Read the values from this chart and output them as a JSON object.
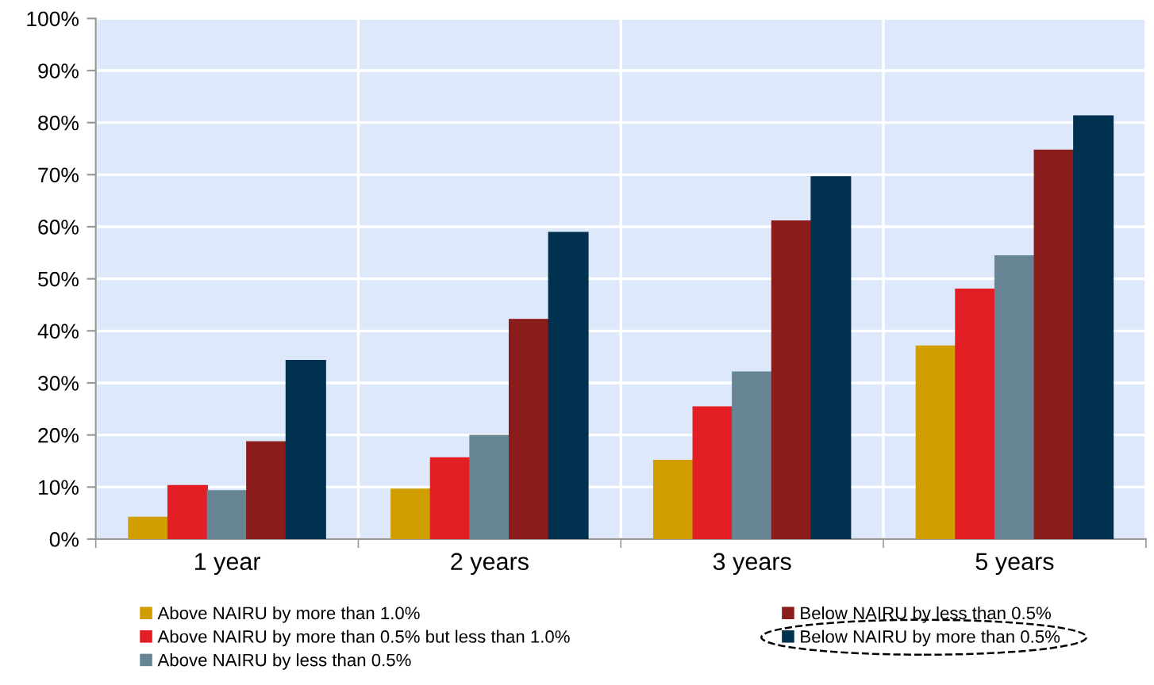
{
  "chart_data": {
    "type": "bar",
    "categories": [
      "1 year",
      "2 years",
      "3 years",
      "5 years"
    ],
    "series": [
      {
        "name": "Above NAIRU by more than 1.0%",
        "color": "#d09e00",
        "values": [
          4.2,
          9.6,
          15.1,
          37.1
        ]
      },
      {
        "name": "Above NAIRU by more than 0.5% but less than 1.0%",
        "color": "#e31e24",
        "values": [
          10.3,
          15.6,
          25.4,
          48.0
        ]
      },
      {
        "name": "Above NAIRU by less than 0.5%",
        "color": "#688596",
        "values": [
          9.3,
          19.9,
          32.1,
          54.4
        ]
      },
      {
        "name": "Below NAIRU by less than 0.5%",
        "color": "#8b1c1c",
        "values": [
          18.7,
          42.2,
          61.1,
          74.7
        ]
      },
      {
        "name": "Below NAIRU by more than 0.5%",
        "color": "#00314f",
        "values": [
          34.3,
          58.9,
          69.6,
          81.3
        ]
      }
    ],
    "ylim": [
      0,
      100
    ],
    "yticks": [
      {
        "value": 0,
        "label": "0%"
      },
      {
        "value": 10,
        "label": "10%"
      },
      {
        "value": 20,
        "label": "20%"
      },
      {
        "value": 30,
        "label": "30%"
      },
      {
        "value": 40,
        "label": "40%"
      },
      {
        "value": 50,
        "label": "50%"
      },
      {
        "value": 60,
        "label": "60%"
      },
      {
        "value": 70,
        "label": "70%"
      },
      {
        "value": 80,
        "label": "80%"
      },
      {
        "value": 90,
        "label": "90%"
      },
      {
        "value": 100,
        "label": "100%"
      }
    ],
    "grid": true,
    "legend": "bottom"
  }
}
